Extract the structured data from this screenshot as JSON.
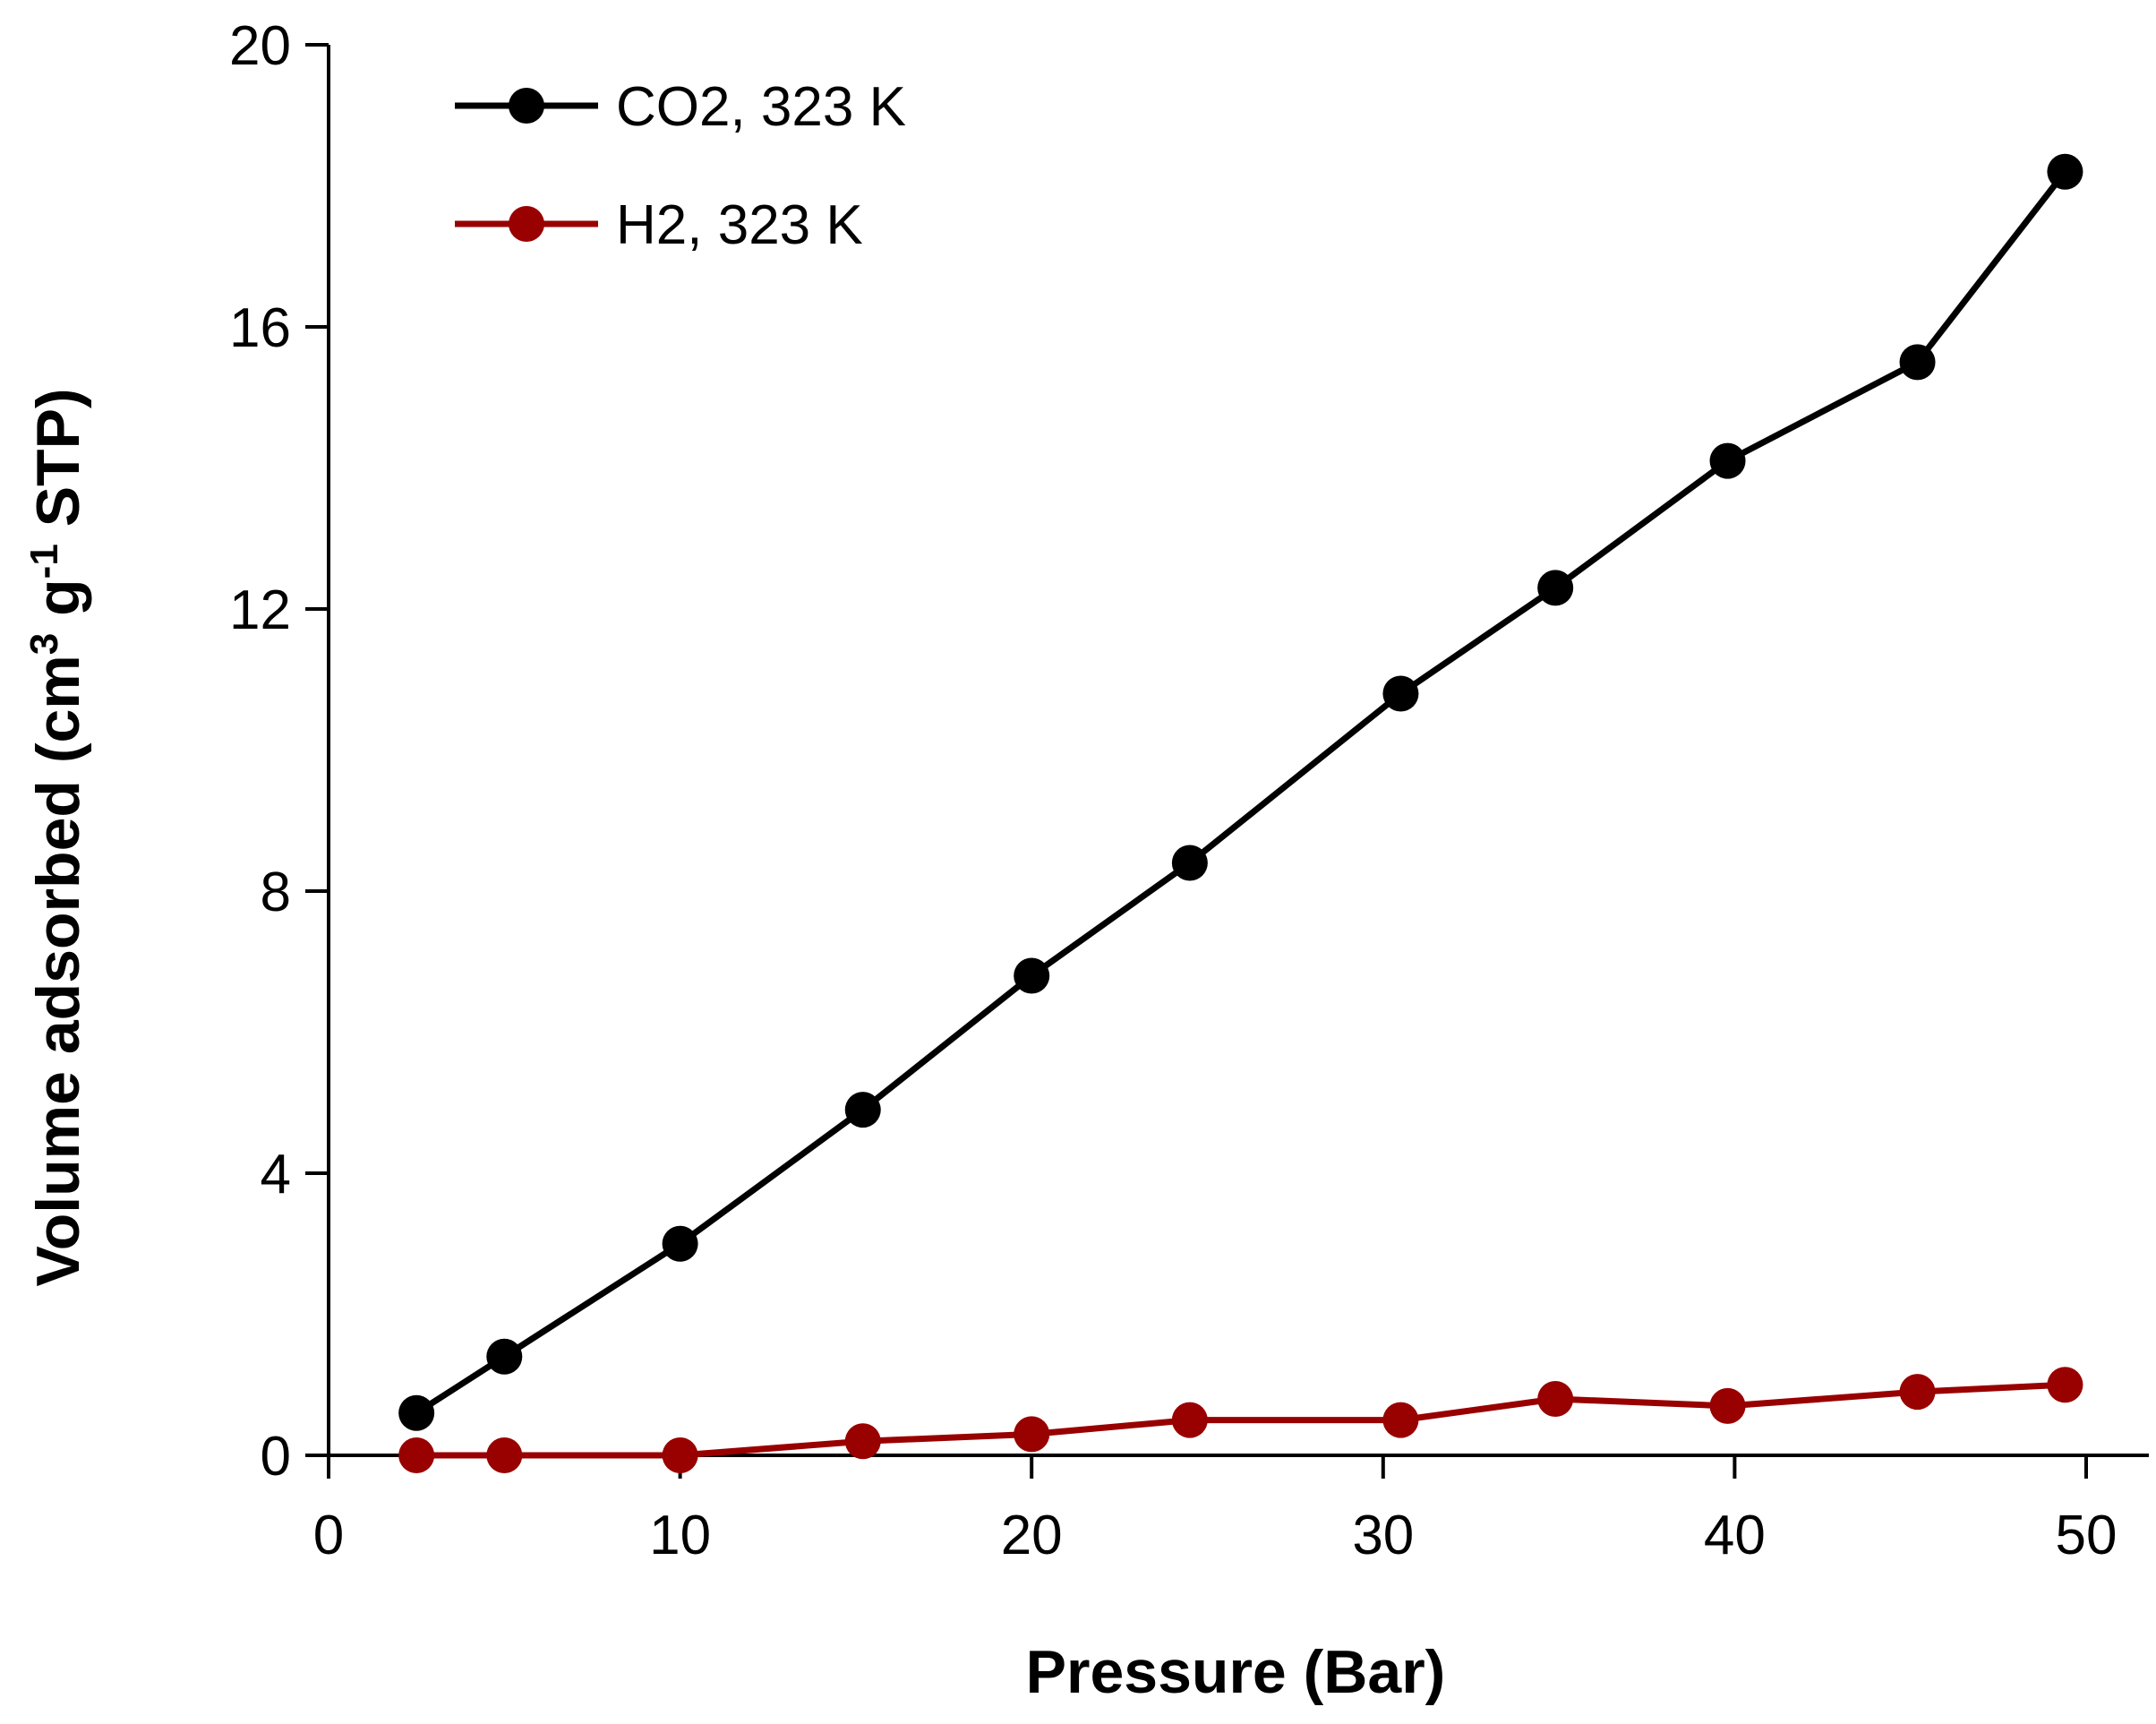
{
  "chart_data": {
    "type": "line",
    "title": "",
    "xlabel": "Pressure (Bar)",
    "ylabel": {
      "main": "Volume adsorbed (cm",
      "sup1": "3",
      "mid": " g",
      "sup2": "-1",
      "end": " STP)"
    },
    "xlim": [
      0,
      50
    ],
    "ylim": [
      0,
      20
    ],
    "xticks": [
      "0",
      "10",
      "20",
      "30",
      "40",
      "50"
    ],
    "yticks": [
      "0",
      "4",
      "8",
      "12",
      "16",
      "20"
    ],
    "legend_position": "top-left",
    "series": [
      {
        "name": "CO2, 323 K",
        "color": "#000000",
        "x": [
          2.5,
          5.0,
          10.0,
          15.2,
          20.0,
          24.5,
          30.5,
          34.9,
          39.8,
          45.2,
          49.4
        ],
        "y": [
          0.6,
          1.4,
          3.0,
          4.9,
          6.8,
          8.4,
          10.8,
          12.3,
          14.1,
          15.5,
          18.2
        ]
      },
      {
        "name": "H2, 323 K",
        "color": "#990000",
        "x": [
          2.5,
          5.0,
          10.0,
          15.2,
          20.0,
          24.5,
          30.5,
          34.9,
          39.8,
          45.2,
          49.4
        ],
        "y": [
          0.0,
          0.0,
          0.0,
          0.2,
          0.3,
          0.5,
          0.5,
          0.8,
          0.7,
          0.9,
          1.0
        ]
      }
    ]
  }
}
